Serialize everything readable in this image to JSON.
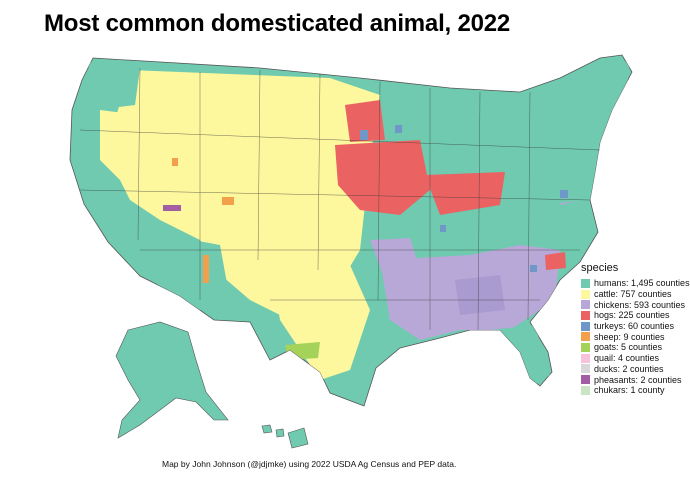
{
  "title": "Most common domesticated animal, 2022",
  "legend": {
    "title": "species",
    "items": [
      {
        "label": "humans: 1,495 counties",
        "color": "#6fcaaf"
      },
      {
        "label": "cattle: 757 counties",
        "color": "#fdf79d"
      },
      {
        "label": "chickens: 593 counties",
        "color": "#b7a8d8"
      },
      {
        "label": "hogs: 225 counties",
        "color": "#ea6362"
      },
      {
        "label": "turkeys: 60 counties",
        "color": "#6f98c9"
      },
      {
        "label": "sheep: 9 counties",
        "color": "#f2a04b"
      },
      {
        "label": "goats: 5 counties",
        "color": "#a5d35a"
      },
      {
        "label": "quail: 4 counties",
        "color": "#f7c3dc"
      },
      {
        "label": "ducks: 2 counties",
        "color": "#d8d8d8"
      },
      {
        "label": "pheasants: 2 counties",
        "color": "#a25da3"
      },
      {
        "label": "chukars: 1 county",
        "color": "#c9e5c1"
      }
    ]
  },
  "caption": "Map by John Johnson (@jdjmke) using 2022 USDA Ag Census and PEP data.",
  "colors": {
    "humans": "#6fcaaf",
    "cattle": "#fdf79d",
    "chickens": "#b7a8d8",
    "hogs": "#ea6362",
    "turkeys": "#6f98c9",
    "sheep": "#f2a04b",
    "goats": "#a5d35a"
  }
}
